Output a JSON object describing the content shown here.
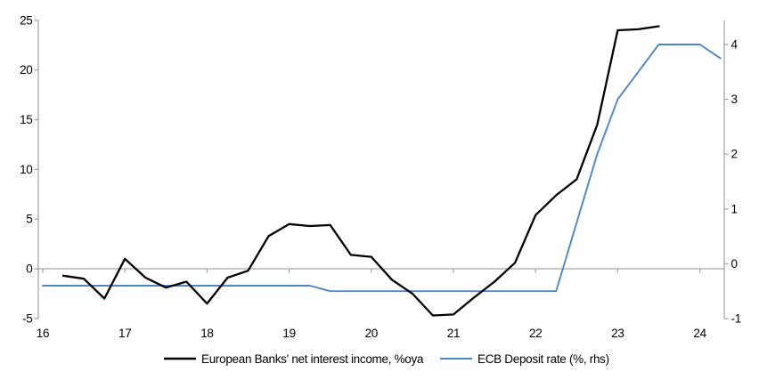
{
  "chart_data": {
    "type": "line",
    "title": "",
    "x_axis": {
      "tick_labels": [
        "16",
        "17",
        "18",
        "19",
        "20",
        "21",
        "22",
        "23",
        "24"
      ],
      "ticks": [
        16,
        17,
        18,
        19,
        20,
        21,
        22,
        23,
        24
      ],
      "range": [
        16,
        24.3
      ],
      "tick_position": "on-zero-line"
    },
    "left_axis": {
      "ticks": [
        -5,
        0,
        5,
        10,
        15,
        20,
        25
      ],
      "range": [
        -5,
        25
      ]
    },
    "right_axis": {
      "ticks": [
        -1,
        0,
        1,
        2,
        3,
        4
      ],
      "range": [
        -1,
        4.5
      ]
    },
    "grid": "zero-line-only",
    "legend_position": "bottom-center",
    "series": [
      {
        "name": "European Banks' net interest income, %oya",
        "axis": "left",
        "color": "#000000",
        "stroke_width": 2.3,
        "x": [
          16.25,
          16.5,
          16.75,
          17.0,
          17.25,
          17.5,
          17.75,
          18.0,
          18.25,
          18.5,
          18.75,
          19.0,
          19.25,
          19.5,
          19.75,
          20.0,
          20.25,
          20.5,
          20.75,
          21.0,
          21.25,
          21.5,
          21.75,
          22.0,
          22.25,
          22.5,
          22.75,
          23.0,
          23.25,
          23.5
        ],
        "values": [
          -0.7,
          -1.0,
          -3.0,
          1.0,
          -0.9,
          -1.9,
          -1.3,
          -3.5,
          -0.9,
          -0.2,
          3.3,
          4.5,
          4.3,
          4.4,
          1.4,
          1.2,
          -1.1,
          -2.5,
          -4.7,
          -4.6,
          -2.9,
          -1.3,
          0.6,
          5.4,
          7.4,
          9.0,
          14.5,
          24.0,
          24.1,
          24.4
        ]
      },
      {
        "name": "ECB Deposit rate (%, rhs)",
        "axis": "right",
        "color": "#4e87c5",
        "stroke_width": 1.9,
        "x": [
          16.0,
          16.25,
          16.5,
          16.75,
          17.0,
          17.25,
          17.5,
          17.75,
          18.0,
          18.25,
          18.5,
          18.75,
          19.0,
          19.25,
          19.5,
          19.75,
          20.0,
          20.25,
          20.5,
          20.75,
          21.0,
          21.25,
          21.5,
          21.75,
          22.0,
          22.25,
          22.5,
          22.75,
          23.0,
          23.25,
          23.5,
          23.75,
          24.0,
          24.25
        ],
        "values": [
          -0.4,
          -0.4,
          -0.4,
          -0.4,
          -0.4,
          -0.4,
          -0.4,
          -0.4,
          -0.4,
          -0.4,
          -0.4,
          -0.4,
          -0.4,
          -0.4,
          -0.5,
          -0.5,
          -0.5,
          -0.5,
          -0.5,
          -0.5,
          -0.5,
          -0.5,
          -0.5,
          -0.5,
          -0.5,
          -0.5,
          0.75,
          2.0,
          3.0,
          3.5,
          4.0,
          4.0,
          4.0,
          3.75
        ]
      }
    ]
  },
  "colors": {
    "axis": "#a6a6a6",
    "background": "#ffffff",
    "text": "#000000"
  }
}
